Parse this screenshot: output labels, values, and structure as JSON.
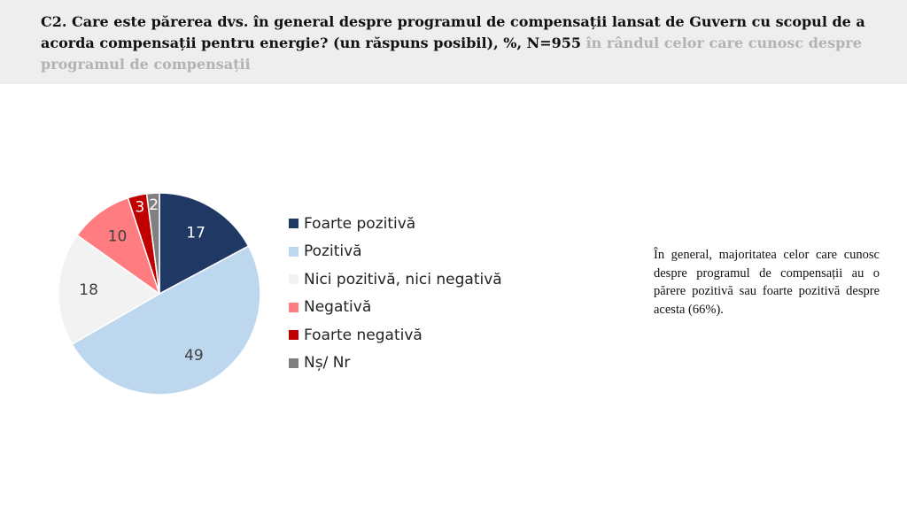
{
  "header": {
    "question": "C2. Care este părerea dvs. în general despre programul de compensații lansat de Guvern cu scopul de a acorda compensații pentru energie? (un răspuns posibil), %, N=955",
    "subgroup": " în rândul celor care cunosc despre programul de compensații"
  },
  "chart_data": {
    "type": "pie",
    "categories": [
      "Foarte pozitivă",
      "Pozitivă",
      "Nici pozitivă, nici negativă",
      "Negativă",
      "Foarte negativă",
      "Nș/ Nr"
    ],
    "values": [
      17,
      49,
      18,
      10,
      3,
      2
    ],
    "colors": [
      "#1f3864",
      "#bdd7ee",
      "#f2f2f2",
      "#ff7c80",
      "#c00000",
      "#808080"
    ],
    "label_colors": [
      "#ffffff",
      "#404040",
      "#404040",
      "#404040",
      "#ffffff",
      "#ffffff"
    ],
    "start": "top",
    "direction": "clockwise",
    "legend_position": "right"
  },
  "note": "În general, majoritatea celor care cunosc despre programul de compensații au o părere pozitivă sau foarte pozitivă despre acesta (66%)."
}
